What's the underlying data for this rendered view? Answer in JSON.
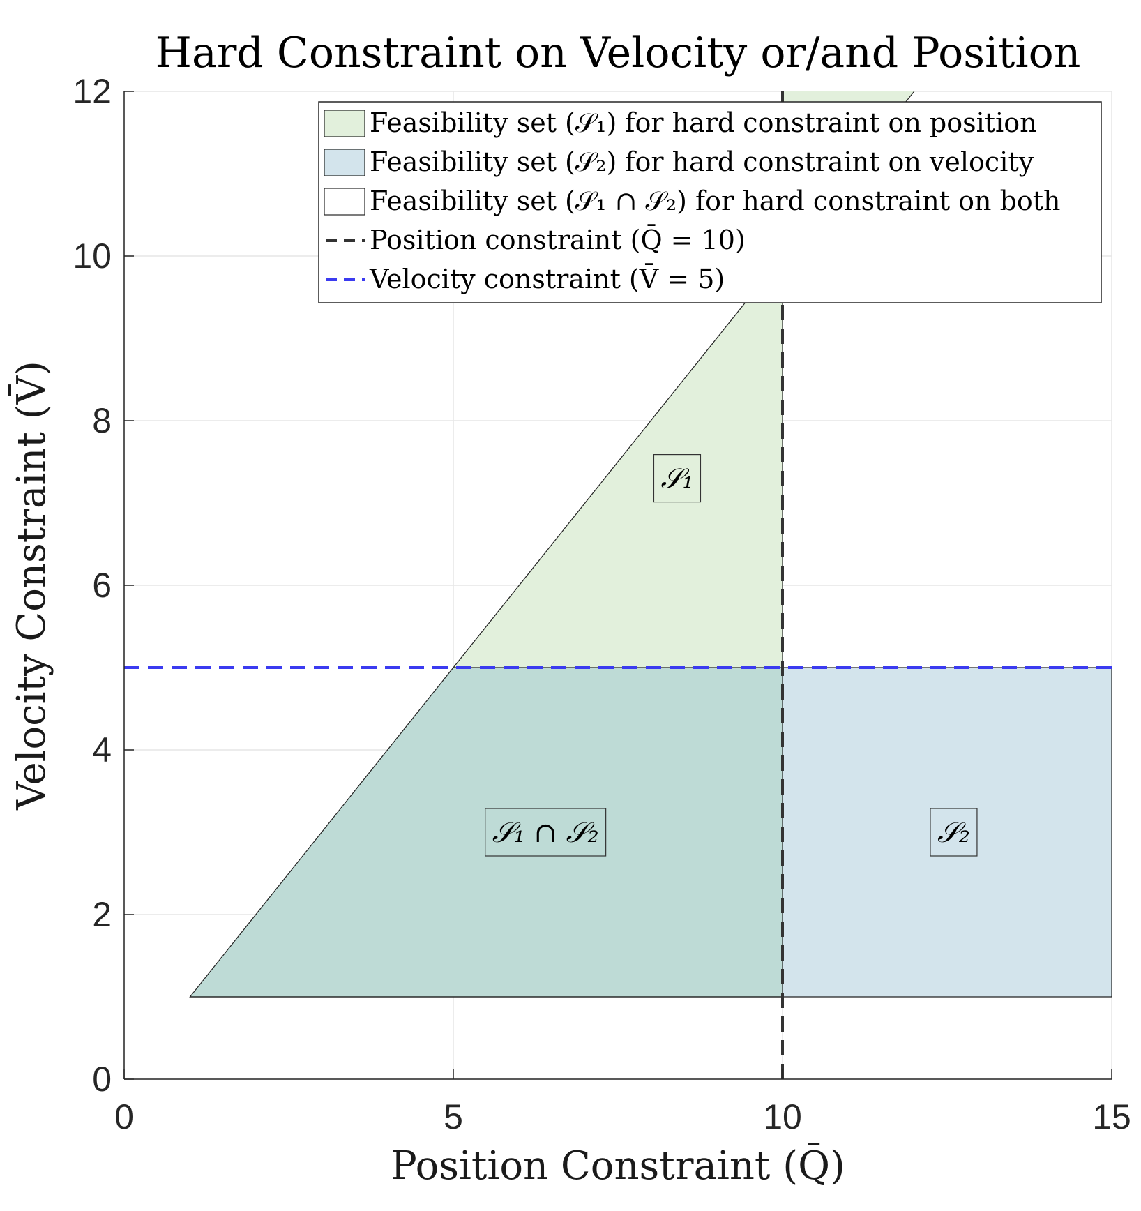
{
  "chart_data": {
    "type": "area",
    "title": "Hard Constraint on Velocity or/and Position",
    "xlabel": "Position Constraint (Q̄)",
    "ylabel": "Velocity Constraint (V̄)",
    "xlim": [
      0,
      15
    ],
    "ylim": [
      0,
      12
    ],
    "xticks": [
      0,
      5,
      10,
      15
    ],
    "yticks": [
      0,
      2,
      4,
      6,
      8,
      10,
      12
    ],
    "xtick_labels": [
      "0",
      "5",
      "10",
      "15"
    ],
    "ytick_labels": [
      "0",
      "2",
      "4",
      "6",
      "8",
      "10",
      "12"
    ],
    "grid": true,
    "legend_position": "top-right",
    "regions": [
      {
        "key": "s1",
        "name": "Feasibility set (𝒮₁) for hard constraint on position",
        "short_label": "𝒮₁",
        "label_at": [
          8.4,
          7.3
        ],
        "color": "#e2f0dc",
        "polygon": [
          [
            1,
            1
          ],
          [
            10,
            1
          ],
          [
            10,
            12
          ],
          [
            12,
            12
          ]
        ]
      },
      {
        "key": "s2",
        "name": "Feasibility set (𝒮₂) for hard constraint on velocity",
        "short_label": "𝒮₂",
        "label_at": [
          12.6,
          3.0
        ],
        "color": "#d3e4ec",
        "polygon": [
          [
            1,
            1
          ],
          [
            15,
            1
          ],
          [
            15,
            5
          ],
          [
            5,
            5
          ]
        ]
      },
      {
        "key": "both",
        "name": "Feasibility set (𝒮₁ ∩ 𝒮₂) for hard constraint on both",
        "short_label": "𝒮₁ ∩ 𝒮₂",
        "label_at": [
          6.4,
          3.0
        ],
        "color": "#bedbd6",
        "polygon": [
          [
            1,
            1
          ],
          [
            10,
            1
          ],
          [
            10,
            5
          ],
          [
            5,
            5
          ]
        ]
      }
    ],
    "lines": [
      {
        "key": "pos",
        "name": "Position constraint (Q̄ = 10)",
        "orientation": "vertical",
        "value": 10,
        "color": "#333333",
        "style": "dashed"
      },
      {
        "key": "vel",
        "name": "Velocity constraint (V̄ = 5)",
        "orientation": "horizontal",
        "value": 5,
        "color": "#3b3bf0",
        "style": "dashed"
      }
    ]
  }
}
